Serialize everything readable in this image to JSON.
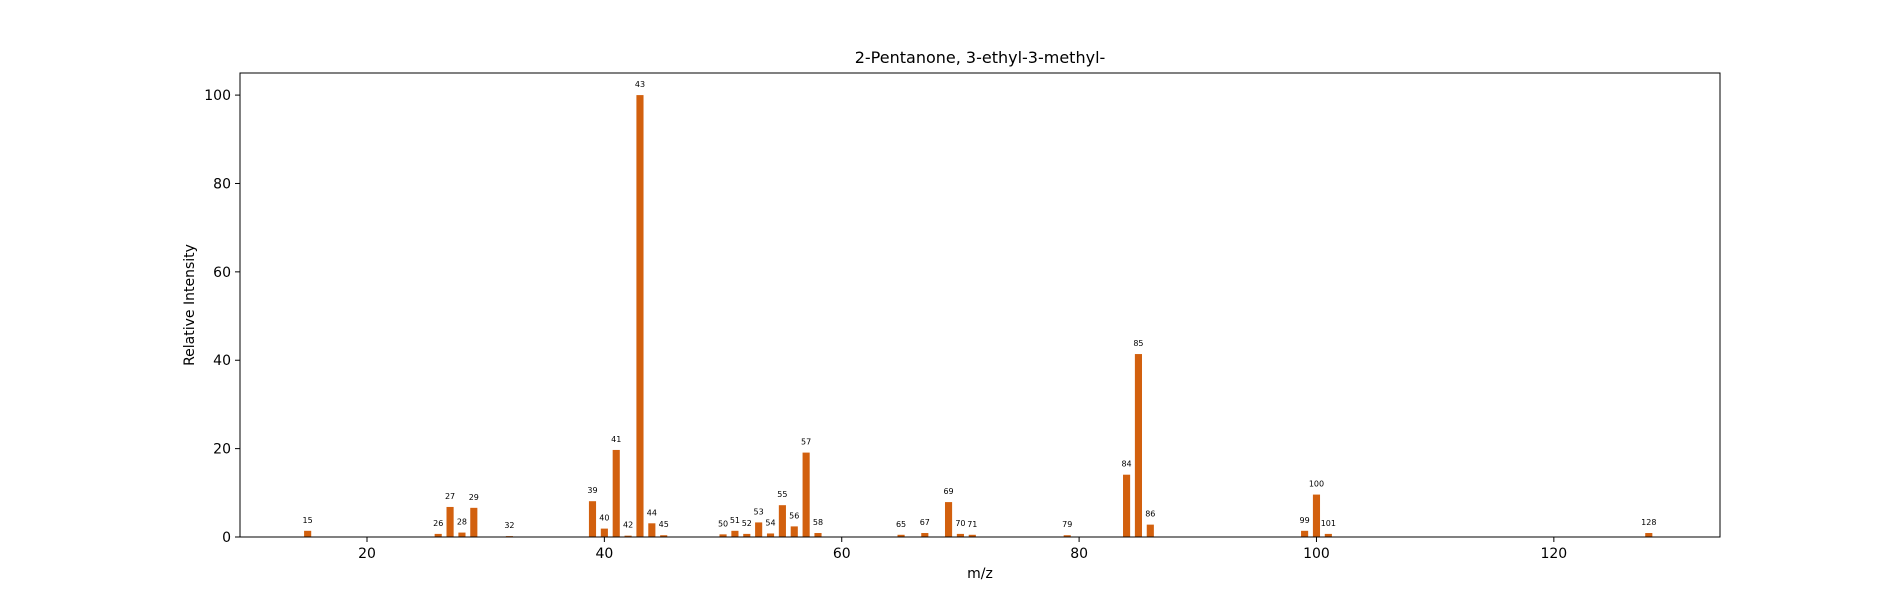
{
  "chart_data": {
    "type": "bar",
    "title": "2-Pentanone, 3-ethyl-3-methyl-",
    "xlabel": "m/z",
    "ylabel": "Relative Intensity",
    "xlim": [
      9.3,
      134
    ],
    "ylim": [
      0,
      105
    ],
    "xticks": [
      20,
      40,
      60,
      80,
      100,
      120
    ],
    "yticks": [
      0,
      20,
      40,
      60,
      80,
      100
    ],
    "bar_color": "#d2600e",
    "grid": false,
    "points": [
      {
        "x": 15,
        "y": 1.4
      },
      {
        "x": 26,
        "y": 0.7
      },
      {
        "x": 27,
        "y": 6.8
      },
      {
        "x": 28,
        "y": 1.0
      },
      {
        "x": 29,
        "y": 6.6
      },
      {
        "x": 32,
        "y": 0.2
      },
      {
        "x": 39,
        "y": 8.1
      },
      {
        "x": 40,
        "y": 1.9
      },
      {
        "x": 41,
        "y": 19.7
      },
      {
        "x": 42,
        "y": 0.3
      },
      {
        "x": 43,
        "y": 100
      },
      {
        "x": 44,
        "y": 3.1
      },
      {
        "x": 45,
        "y": 0.4
      },
      {
        "x": 50,
        "y": 0.6
      },
      {
        "x": 51,
        "y": 1.4
      },
      {
        "x": 52,
        "y": 0.7
      },
      {
        "x": 53,
        "y": 3.3
      },
      {
        "x": 54,
        "y": 0.8
      },
      {
        "x": 55,
        "y": 7.2
      },
      {
        "x": 56,
        "y": 2.4
      },
      {
        "x": 57,
        "y": 19.1
      },
      {
        "x": 58,
        "y": 0.9
      },
      {
        "x": 65,
        "y": 0.5
      },
      {
        "x": 67,
        "y": 0.9
      },
      {
        "x": 69,
        "y": 7.9
      },
      {
        "x": 70,
        "y": 0.7
      },
      {
        "x": 71,
        "y": 0.5
      },
      {
        "x": 79,
        "y": 0.4
      },
      {
        "x": 84,
        "y": 14.1
      },
      {
        "x": 85,
        "y": 41.4
      },
      {
        "x": 86,
        "y": 2.8
      },
      {
        "x": 99,
        "y": 1.4
      },
      {
        "x": 100,
        "y": 9.6
      },
      {
        "x": 101,
        "y": 0.7
      },
      {
        "x": 128,
        "y": 0.9
      }
    ]
  }
}
